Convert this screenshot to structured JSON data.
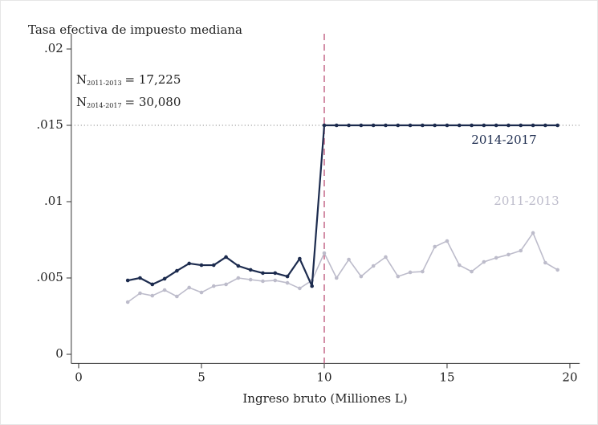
{
  "chart_data": {
    "type": "line",
    "title": "Tasa efectiva de impuesto mediana",
    "x_label": "Ingreso bruto (Milliones L)",
    "x": [
      2,
      2.5,
      3,
      3.5,
      4,
      4.5,
      5,
      5.5,
      6,
      6.5,
      7,
      7.5,
      8,
      8.5,
      9,
      9.5,
      10,
      10.5,
      11,
      11.5,
      12,
      12.5,
      13,
      13.5,
      14,
      14.5,
      15,
      15.5,
      16,
      16.5,
      17,
      17.5,
      18,
      18.5,
      19,
      19.5
    ],
    "series": [
      {
        "name": "2014-2017",
        "color": "#1c2b4e",
        "values": [
          0.00484,
          0.005,
          0.00458,
          0.00495,
          0.00547,
          0.00595,
          0.00584,
          0.00584,
          0.00637,
          0.00579,
          0.00553,
          0.00532,
          0.00532,
          0.0051,
          0.00626,
          0.00447,
          0.015,
          0.015,
          0.015,
          0.015,
          0.015,
          0.015,
          0.015,
          0.015,
          0.015,
          0.015,
          0.015,
          0.015,
          0.015,
          0.015,
          0.015,
          0.015,
          0.015,
          0.015,
          0.015,
          0.015
        ]
      },
      {
        "name": "2011-2013",
        "color": "#bdbccb",
        "values": [
          0.00342,
          0.004,
          0.00384,
          0.00421,
          0.00379,
          0.00437,
          0.00405,
          0.00447,
          0.00458,
          0.005,
          0.00489,
          0.00479,
          0.00484,
          0.00468,
          0.00432,
          0.00484,
          0.00663,
          0.005,
          0.00621,
          0.0051,
          0.00579,
          0.00637,
          0.0051,
          0.00537,
          0.00542,
          0.00705,
          0.00742,
          0.00584,
          0.00542,
          0.00605,
          0.00632,
          0.00653,
          0.00679,
          0.00795,
          0.006,
          0.00553
        ]
      }
    ],
    "xlim": [
      -0.3,
      20.4
    ],
    "ylim": [
      -0.0006,
      0.021
    ],
    "xticks": [
      0,
      5,
      10,
      15,
      20
    ],
    "yticks": [
      0,
      {
        "value": 0.005,
        "label": ".005"
      },
      {
        "value": 0.01,
        "label": ".01"
      },
      {
        "value": 0.015,
        "label": ".015"
      },
      {
        "value": 0.02,
        "label": ".02"
      }
    ],
    "reference_lines": {
      "x": 10,
      "y": 0.015
    },
    "annotations": [
      {
        "text": "N",
        "sub": "2011-2013",
        "rest": "= 17,225"
      },
      {
        "text": "N",
        "sub": "2014-2017",
        "rest": "= 30,080"
      }
    ]
  }
}
